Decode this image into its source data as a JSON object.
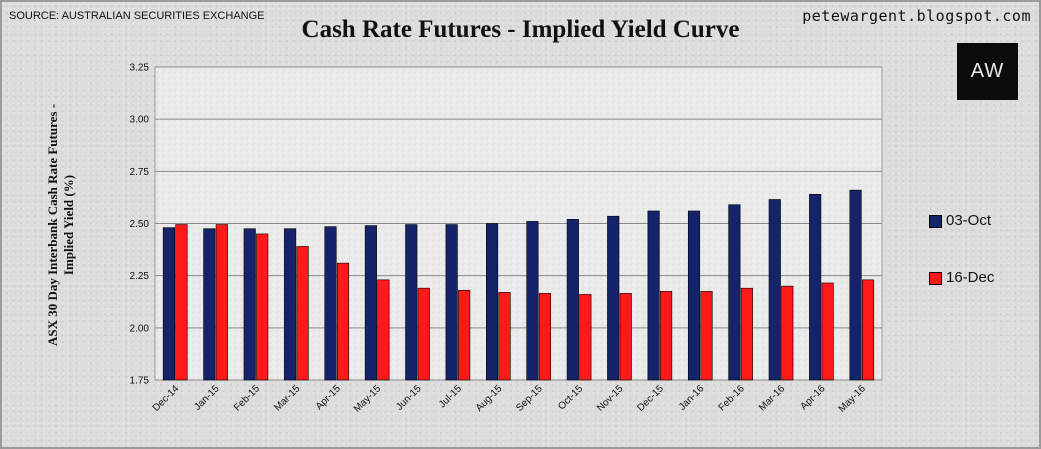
{
  "header": {
    "source": "SOURCE: AUSTRALIAN SECURITIES EXCHANGE",
    "site": "petewargent.blogspot.com",
    "title": "Cash Rate Futures - Implied Yield Curve",
    "logo_text": "AW"
  },
  "colors": {
    "series_1": "#15246a",
    "series_2": "#ff1a1a",
    "plot_background": "#ebebeb",
    "gridline": "#8a8a8a"
  },
  "legend": {
    "item_1": "03-Oct",
    "item_2": "16-Dec"
  },
  "chart_data": {
    "type": "bar",
    "title": "Cash Rate Futures - Implied Yield Curve",
    "ylabel_line1": "ASX 30 Day Interbank Cash Rate Futures -",
    "ylabel_line2": "Implied Yield (%)",
    "xlabel": "",
    "ylim": [
      1.75,
      3.25
    ],
    "yticks": [
      "1.75",
      "2.00",
      "2.25",
      "2.50",
      "2.75",
      "3.00",
      "3.25"
    ],
    "grid": true,
    "legend_position": "right",
    "categories": [
      "Dec-14",
      "Jan-15",
      "Feb-15",
      "Mar-15",
      "Apr-15",
      "May-15",
      "Jun-15",
      "Jul-15",
      "Aug-15",
      "Sep-15",
      "Oct-15",
      "Nov-15",
      "Dec-15",
      "Jan-16",
      "Feb-16",
      "Mar-16",
      "Apr-16",
      "May-16"
    ],
    "series": [
      {
        "name": "03-Oct",
        "values": [
          2.48,
          2.475,
          2.475,
          2.475,
          2.485,
          2.49,
          2.495,
          2.495,
          2.5,
          2.51,
          2.52,
          2.535,
          2.56,
          2.56,
          2.59,
          2.615,
          2.64,
          2.66
        ]
      },
      {
        "name": "16-Dec",
        "values": [
          2.495,
          2.495,
          2.45,
          2.39,
          2.31,
          2.23,
          2.19,
          2.18,
          2.17,
          2.165,
          2.16,
          2.165,
          2.175,
          2.175,
          2.19,
          2.2,
          2.215,
          2.23
        ]
      }
    ]
  }
}
